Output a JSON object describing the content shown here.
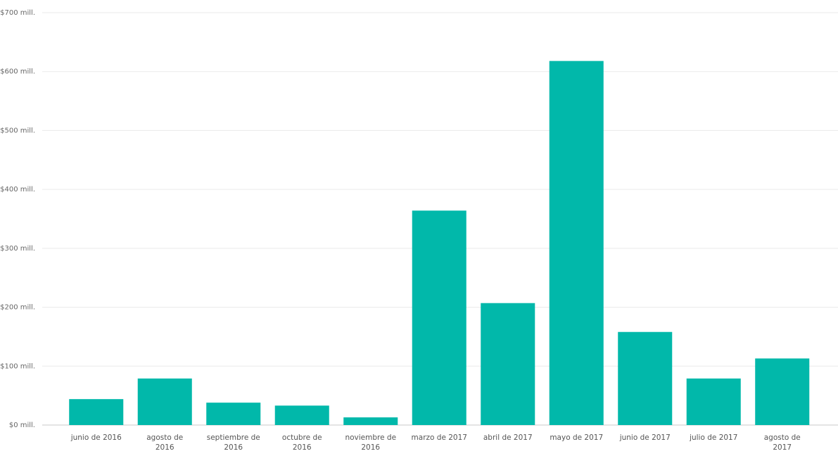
{
  "chart_data": {
    "type": "bar",
    "categories": [
      "junio de 2016",
      "agosto de 2016",
      "septiembre de 2016",
      "octubre de 2016",
      "noviembre de 2016",
      "marzo de 2017",
      "abril de 2017",
      "mayo de 2017",
      "junio de 2017",
      "julio de 2017",
      "agosto de 2017"
    ],
    "values": [
      44,
      79,
      38,
      33,
      13,
      364,
      207,
      618,
      158,
      79,
      113
    ],
    "color": "#01b8aa",
    "ylim": [
      0,
      700
    ],
    "yticks": [
      {
        "value": 0,
        "label": "$0 mill."
      },
      {
        "value": 100,
        "label": "$100 mill."
      },
      {
        "value": 200,
        "label": "$200 mill."
      },
      {
        "value": 300,
        "label": "$300 mill."
      },
      {
        "value": 400,
        "label": "$400 mill."
      },
      {
        "value": 500,
        "label": "$500 mill."
      },
      {
        "value": 600,
        "label": "$600 mill."
      },
      {
        "value": 700,
        "label": "$700 mill."
      }
    ],
    "grid": true
  }
}
